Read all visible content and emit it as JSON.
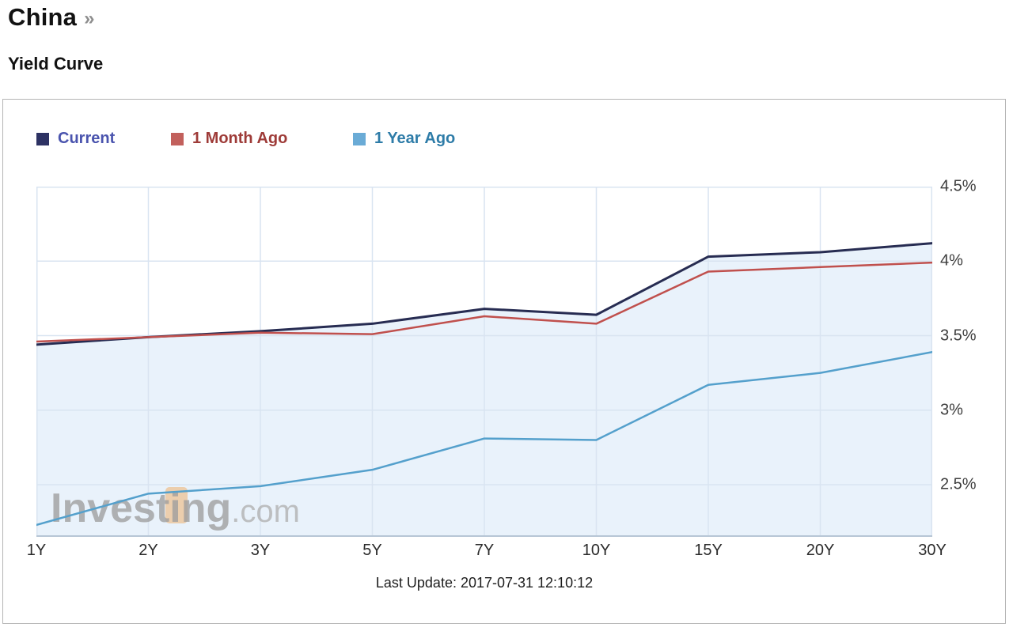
{
  "header": {
    "title": "China",
    "chevron": "»",
    "subtitle": "Yield Curve"
  },
  "chart_data": {
    "type": "line",
    "title": "Yield Curve",
    "categories": [
      "1Y",
      "2Y",
      "3Y",
      "5Y",
      "7Y",
      "10Y",
      "15Y",
      "20Y",
      "30Y"
    ],
    "series": [
      {
        "name": "Current",
        "values": [
          3.44,
          3.49,
          3.53,
          3.58,
          3.68,
          3.64,
          4.03,
          4.06,
          4.12
        ],
        "line_color": "#272c52",
        "marker_color": "#2d3263",
        "label_color": "#4a54ae",
        "line_width": 3,
        "fill": true
      },
      {
        "name": "1 Month Ago",
        "values": [
          3.46,
          3.49,
          3.52,
          3.51,
          3.63,
          3.58,
          3.93,
          3.96,
          3.99
        ],
        "line_color": "#c0504d",
        "marker_color": "#c2605c",
        "label_color": "#9e3b38",
        "line_width": 2.5,
        "fill": true
      },
      {
        "name": "1 Year Ago",
        "values": [
          2.23,
          2.44,
          2.49,
          2.6,
          2.81,
          2.8,
          3.17,
          3.25,
          3.39
        ],
        "line_color": "#54a0cc",
        "marker_color": "#6aabd6",
        "label_color": "#2e7ca8",
        "line_width": 2.5,
        "fill": false
      }
    ],
    "xlabel": "",
    "ylabel": "",
    "ylim": [
      2.15,
      4.5
    ],
    "yticks": [
      {
        "value": 4.5,
        "label": "4.5%"
      },
      {
        "value": 4.0,
        "label": "4%"
      },
      {
        "value": 3.5,
        "label": "3.5%"
      },
      {
        "value": 3.0,
        "label": "3%"
      },
      {
        "value": 2.5,
        "label": "2.5%"
      }
    ],
    "grid": true,
    "legend_position": "top",
    "fill_color": "#e9f2fb",
    "grid_color": "#d9e4f1",
    "axis_line_color": "#b7c6d5"
  },
  "watermark": {
    "brand": "Investing",
    "domain": ".com",
    "accent_color": "#f0a95f",
    "brand_color": "#9e9e9e",
    "domain_color": "#b0b0b0"
  },
  "footer": {
    "last_update": "Last Update: 2017-07-31 12:10:12"
  }
}
